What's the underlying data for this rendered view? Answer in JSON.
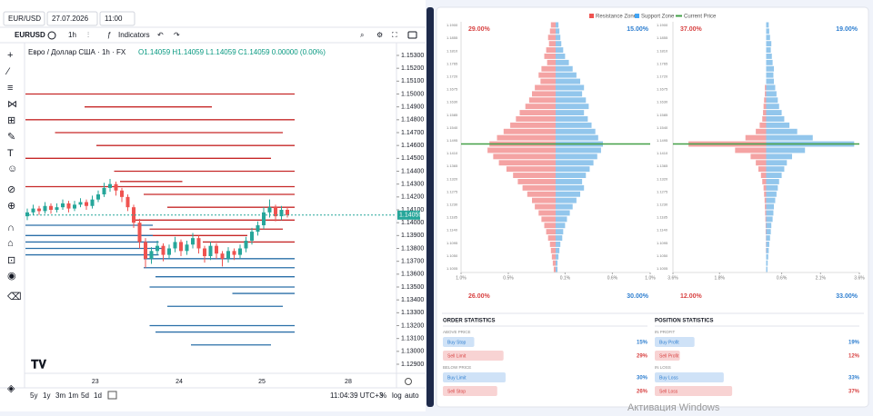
{
  "topbar": {
    "symbol": "EUR/USD",
    "date": "27.07.2026",
    "time": "11:00"
  },
  "toolbar": {
    "ticker": "EURUSD",
    "interval": "1h",
    "indicators": "Indicators"
  },
  "chart": {
    "title": "Евро / Доллар США · 1h · FX",
    "ohlc": "O1.14059 H1.14059 L1.14059 C1.14059 0.00000 (0.00%)",
    "ylim": [
      1.129,
      1.153
    ],
    "yticks": [
      {
        "value": 1.153,
        "label": "1.15300"
      },
      {
        "value": 1.152,
        "label": "1.15200"
      },
      {
        "value": 1.151,
        "label": "1.15100"
      },
      {
        "value": 1.15,
        "label": "1.15000"
      },
      {
        "value": 1.149,
        "label": "1.14900"
      },
      {
        "value": 1.148,
        "label": "1.14800"
      },
      {
        "value": 1.147,
        "label": "1.14700"
      },
      {
        "value": 1.146,
        "label": "1.14600"
      },
      {
        "value": 1.145,
        "label": "1.14500"
      },
      {
        "value": 1.144,
        "label": "1.14400"
      },
      {
        "value": 1.143,
        "label": "1.14300"
      },
      {
        "value": 1.142,
        "label": "1.14200"
      },
      {
        "value": 1.141,
        "label": "1.14100"
      },
      {
        "value": 1.14,
        "label": "1.14000"
      },
      {
        "value": 1.139,
        "label": "1.13900"
      },
      {
        "value": 1.138,
        "label": "1.13800"
      },
      {
        "value": 1.137,
        "label": "1.13700"
      },
      {
        "value": 1.136,
        "label": "1.13600"
      },
      {
        "value": 1.135,
        "label": "1.13500"
      },
      {
        "value": 1.134,
        "label": "1.13400"
      },
      {
        "value": 1.133,
        "label": "1.13300"
      },
      {
        "value": 1.132,
        "label": "1.13200"
      },
      {
        "value": 1.131,
        "label": "1.13100"
      },
      {
        "value": 1.13,
        "label": "1.13000"
      },
      {
        "value": 1.129,
        "label": "1.12900"
      }
    ],
    "current_price": {
      "value": 1.14059,
      "label": "1.14059"
    },
    "xticks": [
      {
        "value": 11.5,
        "label": "23"
      },
      {
        "value": 25.7,
        "label": "24"
      },
      {
        "value": 39.7,
        "label": "25"
      },
      {
        "value": 54.3,
        "label": "28"
      }
    ],
    "candles": [
      [
        1.1405,
        1.1411,
        1.1402,
        1.1408
      ],
      [
        1.1408,
        1.1414,
        1.1406,
        1.1411
      ],
      [
        1.1411,
        1.1413,
        1.1406,
        1.1409
      ],
      [
        1.1409,
        1.1416,
        1.1407,
        1.1413
      ],
      [
        1.1413,
        1.1415,
        1.1407,
        1.141
      ],
      [
        1.141,
        1.1415,
        1.1408,
        1.1412
      ],
      [
        1.1412,
        1.1418,
        1.141,
        1.1415
      ],
      [
        1.1415,
        1.1417,
        1.1408,
        1.1411
      ],
      [
        1.1411,
        1.1417,
        1.1409,
        1.1414
      ],
      [
        1.1414,
        1.1419,
        1.1412,
        1.1416
      ],
      [
        1.1416,
        1.1418,
        1.141,
        1.1413
      ],
      [
        1.1413,
        1.1421,
        1.1411,
        1.1418
      ],
      [
        1.1418,
        1.1425,
        1.1416,
        1.1422
      ],
      [
        1.1422,
        1.1431,
        1.142,
        1.1427
      ],
      [
        1.1427,
        1.1434,
        1.1424,
        1.143
      ],
      [
        1.143,
        1.1432,
        1.1421,
        1.1425
      ],
      [
        1.1425,
        1.1427,
        1.1416,
        1.142
      ],
      [
        1.142,
        1.1422,
        1.1409,
        1.1412
      ],
      [
        1.1412,
        1.1414,
        1.1396,
        1.14
      ],
      [
        1.14,
        1.1403,
        1.138,
        1.1385
      ],
      [
        1.1385,
        1.1388,
        1.1365,
        1.1372
      ],
      [
        1.1372,
        1.1381,
        1.1368,
        1.1378
      ],
      [
        1.1378,
        1.1386,
        1.1375,
        1.1382
      ],
      [
        1.1382,
        1.1384,
        1.137,
        1.1375
      ],
      [
        1.1375,
        1.1383,
        1.1372,
        1.138
      ],
      [
        1.138,
        1.1389,
        1.1377,
        1.1385
      ],
      [
        1.1385,
        1.1387,
        1.1374,
        1.1378
      ],
      [
        1.1378,
        1.1386,
        1.1375,
        1.1383
      ],
      [
        1.1383,
        1.1392,
        1.138,
        1.1388
      ],
      [
        1.1388,
        1.139,
        1.1376,
        1.138
      ],
      [
        1.138,
        1.1382,
        1.1369,
        1.1374
      ],
      [
        1.1374,
        1.1385,
        1.1371,
        1.1382
      ],
      [
        1.1382,
        1.1384,
        1.1372,
        1.1376
      ],
      [
        1.1376,
        1.1378,
        1.1366,
        1.1372
      ],
      [
        1.1372,
        1.1381,
        1.1369,
        1.1378
      ],
      [
        1.1378,
        1.138,
        1.1371,
        1.1375
      ],
      [
        1.1375,
        1.1383,
        1.1372,
        1.138
      ],
      [
        1.138,
        1.1389,
        1.1377,
        1.1386
      ],
      [
        1.1386,
        1.1396,
        1.1383,
        1.1393
      ],
      [
        1.1393,
        1.1401,
        1.139,
        1.1398
      ],
      [
        1.1398,
        1.1412,
        1.1395,
        1.1408
      ],
      [
        1.1408,
        1.1418,
        1.1404,
        1.1412
      ],
      [
        1.1412,
        1.1414,
        1.1401,
        1.1405
      ],
      [
        1.1405,
        1.1413,
        1.1402,
        1.141
      ],
      [
        1.141,
        1.1412,
        1.1404,
        1.14059
      ]
    ],
    "resistance_levels": [
      [
        1.15,
        0,
        44
      ],
      [
        1.149,
        10,
        30
      ],
      [
        1.148,
        0,
        44
      ],
      [
        1.147,
        5,
        42
      ],
      [
        1.146,
        12,
        44
      ],
      [
        1.145,
        0,
        40
      ],
      [
        1.144,
        15,
        44
      ],
      [
        1.1432,
        16,
        25
      ],
      [
        1.1428,
        0,
        44
      ],
      [
        1.1422,
        20,
        44
      ],
      [
        1.1412,
        24,
        44
      ],
      [
        1.1402,
        18,
        44
      ],
      [
        1.1395,
        21,
        42
      ],
      [
        1.139,
        19,
        36
      ],
      [
        1.1385,
        30,
        44
      ]
    ],
    "support_levels": [
      [
        1.1398,
        0,
        20
      ],
      [
        1.139,
        0,
        20
      ],
      [
        1.1385,
        0,
        21
      ],
      [
        1.138,
        0,
        22
      ],
      [
        1.1375,
        0,
        21
      ],
      [
        1.1372,
        20,
        44
      ],
      [
        1.1365,
        20,
        44
      ],
      [
        1.1358,
        22,
        44
      ],
      [
        1.135,
        21,
        44
      ],
      [
        1.1345,
        35,
        44
      ],
      [
        1.1335,
        24,
        42
      ],
      [
        1.132,
        21,
        44
      ],
      [
        1.1315,
        22,
        44
      ],
      [
        1.1305,
        28,
        40
      ]
    ]
  },
  "bottombar": {
    "ranges": [
      "5y",
      "1y",
      "3m",
      "1m",
      "5d",
      "1d"
    ],
    "clock": "11:04:39 UTC+3",
    "percent": "%",
    "log": "log",
    "auto": "auto"
  },
  "book": {
    "legend": [
      "Resistance Zone",
      "Support Zone",
      "Current Price"
    ],
    "price_labels": [
      "1.1900",
      "1.1855",
      "1.1810",
      "1.1765",
      "1.1720",
      "1.1675",
      "1.1630",
      "1.1585",
      "1.1540",
      "1.1495",
      "1.1410",
      "1.1365",
      "1.1320",
      "1.1275",
      "1.1230",
      "1.1185",
      "1.1140",
      "1.1095",
      "1.1050",
      "1.1005"
    ],
    "current_row": 19,
    "panels": [
      {
        "top_left": "29.00%",
        "top_right": "15.00%",
        "bottom_left": "26.00%",
        "bottom_right": "30.00%",
        "xticks": [
          {
            "value": -1,
            "label": "1.0%"
          },
          {
            "value": -0.5,
            "label": "0.5%"
          },
          {
            "value": 0.1,
            "label": "0.1%"
          },
          {
            "value": 0.6,
            "label": "0.6%"
          },
          {
            "value": 1,
            "label": "1.0%"
          }
        ],
        "xlim": [
          -1,
          1
        ],
        "resistance": [
          0.05,
          0.06,
          0.08,
          0.07,
          0.1,
          0.12,
          0.09,
          0.15,
          0.18,
          0.16,
          0.22,
          0.25,
          0.28,
          0.32,
          0.38,
          0.42,
          0.48,
          0.55,
          0.62,
          0.7,
          0.72,
          0.66,
          0.6,
          0.52,
          0.45,
          0.4,
          0.35,
          0.3,
          0.25,
          0.22,
          0.18,
          0.15,
          0.12,
          0.1,
          0.08,
          0.06,
          0.05,
          0.04,
          0.03,
          0.02
        ],
        "support": [
          0.03,
          0.04,
          0.05,
          0.06,
          0.08,
          0.1,
          0.14,
          0.18,
          0.22,
          0.26,
          0.3,
          0.28,
          0.32,
          0.35,
          0.3,
          0.34,
          0.38,
          0.42,
          0.45,
          0.5,
          0.48,
          0.44,
          0.4,
          0.36,
          0.32,
          0.28,
          0.3,
          0.26,
          0.22,
          0.18,
          0.15,
          0.12,
          0.1,
          0.08,
          0.07,
          0.05,
          0.04,
          0.03,
          0.02,
          0.02
        ]
      },
      {
        "top_left": "37.00%",
        "top_right": "19.00%",
        "bottom_left": "12.00%",
        "bottom_right": "33.00%",
        "xticks": [
          {
            "value": -3.6,
            "label": "3.6%"
          },
          {
            "value": -1.8,
            "label": "1.8%"
          },
          {
            "value": 0.6,
            "label": "0.6%"
          },
          {
            "value": 2.1,
            "label": "2.1%"
          },
          {
            "value": 3.6,
            "label": "3.6%"
          }
        ],
        "xlim": [
          -3.6,
          3.6
        ],
        "resistance": [
          0,
          0,
          0,
          0,
          0,
          0,
          0,
          0,
          0,
          0,
          0.05,
          0.05,
          0.08,
          0.1,
          0.12,
          0.15,
          0.25,
          0.4,
          0.8,
          3,
          1.2,
          0.6,
          0.4,
          0.3,
          0.2,
          0.15,
          0.1,
          0.08,
          0.06,
          0.05,
          0.04,
          0.03,
          0.02,
          0.02,
          0.01,
          0.01,
          0.01,
          0,
          0,
          0
        ],
        "support": [
          0.1,
          0.12,
          0.15,
          0.2,
          0.18,
          0.22,
          0.25,
          0.3,
          0.28,
          0.3,
          0.35,
          0.4,
          0.45,
          0.5,
          0.6,
          0.7,
          0.9,
          1.2,
          1.8,
          3.4,
          1.5,
          1,
          0.8,
          0.7,
          0.6,
          0.5,
          0.45,
          0.4,
          0.35,
          0.3,
          0.28,
          0.25,
          0.2,
          0.18,
          0.15,
          0.12,
          0.1,
          0.08,
          0.06,
          0.05
        ]
      }
    ]
  },
  "stats": [
    {
      "title": "ORDER STATISTICS",
      "groups": [
        {
          "label": "ABOVE PRICE",
          "items": [
            {
              "name": "Buy Stop",
              "value": 15,
              "value_label": "15%",
              "color": "#cfe2f7",
              "text": "#2f7fd0"
            },
            {
              "name": "Sell Limit",
              "value": 29,
              "value_label": "29%",
              "color": "#f8d3d3",
              "text": "#d84444"
            }
          ]
        },
        {
          "label": "BELOW PRICE",
          "items": [
            {
              "name": "Buy Limit",
              "value": 30,
              "value_label": "30%",
              "color": "#cfe2f7",
              "text": "#2f7fd0"
            },
            {
              "name": "Sell Stop",
              "value": 26,
              "value_label": "26%",
              "color": "#f8d3d3",
              "text": "#d84444"
            }
          ]
        }
      ]
    },
    {
      "title": "POSITION STATISTICS",
      "groups": [
        {
          "label": "IN PROFIT",
          "items": [
            {
              "name": "Buy Profit",
              "value": 19,
              "value_label": "19%",
              "color": "#cfe2f7",
              "text": "#2f7fd0"
            },
            {
              "name": "Sell Profit",
              "value": 12,
              "value_label": "12%",
              "color": "#f8d3d3",
              "text": "#d84444"
            }
          ]
        },
        {
          "label": "IN LOSS",
          "items": [
            {
              "name": "Buy Loss",
              "value": 33,
              "value_label": "33%",
              "color": "#cfe2f7",
              "text": "#2f7fd0"
            },
            {
              "name": "Sell Loss",
              "value": 37,
              "value_label": "37%",
              "color": "#f8d3d3",
              "text": "#d84444"
            }
          ]
        }
      ]
    }
  ],
  "watermark": "Активация Windows"
}
